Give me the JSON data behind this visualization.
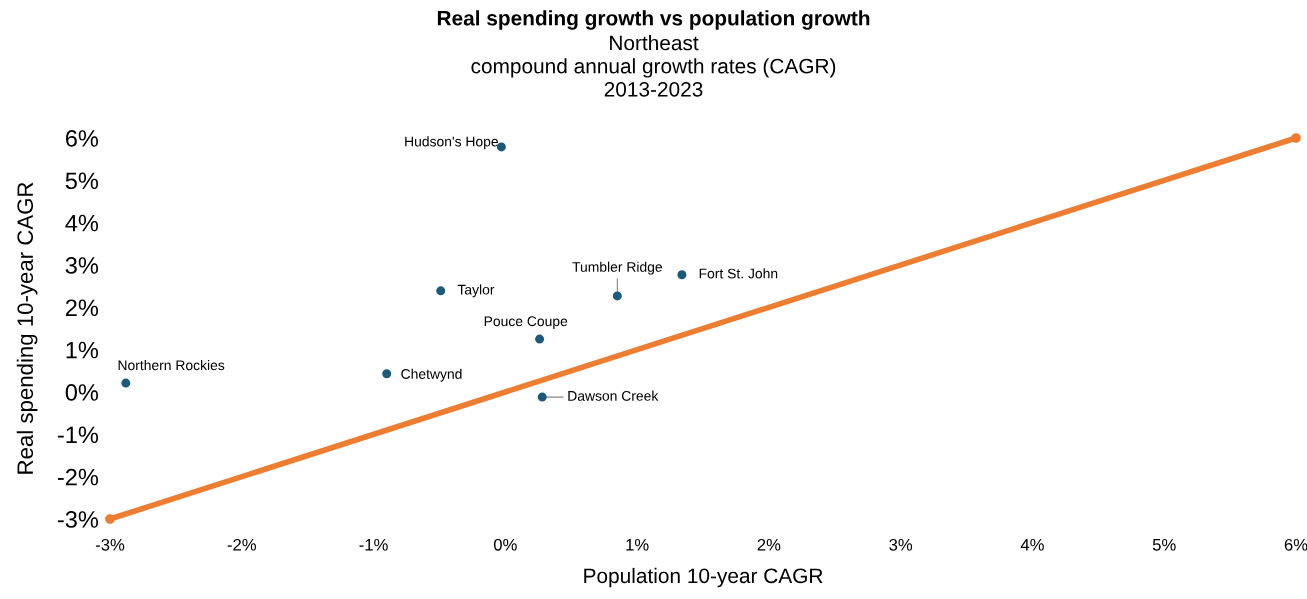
{
  "chart_data": {
    "type": "scatter",
    "title": "Real spending growth vs population growth",
    "subtitle": "Northeast\ncompound annual growth rates (CAGR)\n2013-2023",
    "xlabel": "Population 10-year CAGR",
    "ylabel": "Real spending 10-year CAGR",
    "series": [
      {
        "color": "#1b5a7a",
        "marker": "circle",
        "x": [
          -0.03,
          -0.49,
          0.85,
          1.34,
          0.26,
          -0.9,
          0.28,
          -2.88
        ],
        "values": [
          5.79,
          2.39,
          2.27,
          2.77,
          1.25,
          0.43,
          -0.12,
          0.21
        ]
      },
      {
        "type": "line",
        "color": "#ed7d31",
        "marker": "circle",
        "x": [
          -3,
          6
        ],
        "values": [
          -3,
          6
        ]
      }
    ],
    "annotations": [
      {
        "text": "Hudson's Hope",
        "x": -0.03,
        "y": 5.79
      },
      {
        "text": "Taylor",
        "x": -0.49,
        "y": 2.39
      },
      {
        "text": "Tumbler Ridge",
        "x": 0.85,
        "y": 2.27
      },
      {
        "text": "Fort St. John",
        "x": 1.34,
        "y": 2.77
      },
      {
        "text": "Pouce Coupe",
        "x": 0.26,
        "y": 1.25
      },
      {
        "text": "Chetwynd",
        "x": -0.9,
        "y": 0.43
      },
      {
        "text": "Dawson Creek",
        "x": 0.28,
        "y": -0.12
      },
      {
        "text": "Northern Rockies",
        "x": -2.88,
        "y": 0.21
      }
    ],
    "xlim": [
      -3,
      6
    ],
    "ylim": [
      -3,
      6
    ],
    "xticks": [
      {
        "value": -3,
        "label": "-3%"
      },
      {
        "value": -2,
        "label": "-2%"
      },
      {
        "value": -1,
        "label": "-1%"
      },
      {
        "value": 0,
        "label": "0%"
      },
      {
        "value": 1,
        "label": "1%"
      },
      {
        "value": 2,
        "label": "2%"
      },
      {
        "value": 3,
        "label": "3%"
      },
      {
        "value": 4,
        "label": "4%"
      },
      {
        "value": 5,
        "label": "5%"
      },
      {
        "value": 6,
        "label": "6%"
      }
    ],
    "yticks": [
      {
        "value": -3,
        "label": "-3%"
      },
      {
        "value": -2,
        "label": "-2%"
      },
      {
        "value": -1,
        "label": "-1%"
      },
      {
        "value": 0,
        "label": "0%"
      },
      {
        "value": 1,
        "label": "1%"
      },
      {
        "value": 2,
        "label": "2%"
      },
      {
        "value": 3,
        "label": "3%"
      },
      {
        "value": 4,
        "label": "4%"
      },
      {
        "value": 5,
        "label": "5%"
      },
      {
        "value": 6,
        "label": "6%"
      }
    ],
    "grid": false,
    "legend": false
  }
}
